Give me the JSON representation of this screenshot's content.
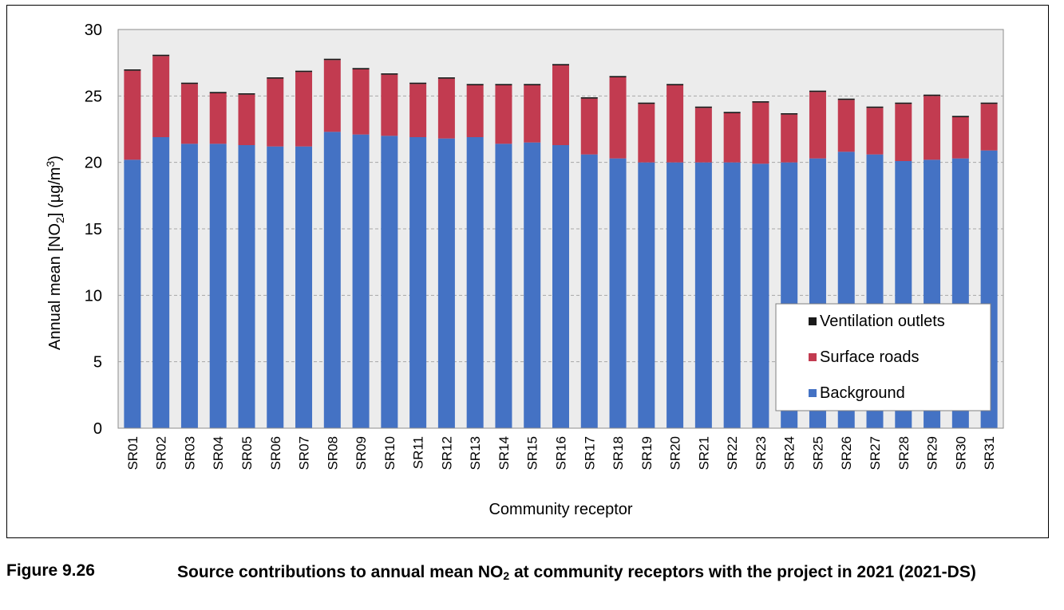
{
  "caption": {
    "label": "Figure 9.26",
    "text_before": "Source contributions to annual mean NO",
    "text_sub": "2",
    "text_after": " at community receptors with the project in 2021 (2021-DS)"
  },
  "chart_data": {
    "type": "bar",
    "stacked": true,
    "categories": [
      "SR01",
      "SR02",
      "SR03",
      "SR04",
      "SR05",
      "SR06",
      "SR07",
      "SR08",
      "SR09",
      "SR10",
      "SR11",
      "SR12",
      "SR13",
      "SR14",
      "SR15",
      "SR16",
      "SR17",
      "SR18",
      "SR19",
      "SR20",
      "SR21",
      "SR22",
      "SR23",
      "SR24",
      "SR25",
      "SR26",
      "SR27",
      "SR28",
      "SR29",
      "SR30",
      "SR31"
    ],
    "series": [
      {
        "name": "Background",
        "color": "#4472c4",
        "values": [
          20.2,
          21.9,
          21.4,
          21.4,
          21.3,
          21.2,
          21.2,
          22.3,
          22.1,
          22.0,
          21.9,
          21.8,
          21.9,
          21.4,
          21.5,
          21.3,
          20.6,
          20.3,
          20.0,
          20.0,
          20.0,
          20.0,
          19.9,
          20.0,
          20.3,
          20.8,
          20.6,
          20.1,
          20.2,
          20.3,
          20.9
        ]
      },
      {
        "name": "Surface roads",
        "color": "#c23b50",
        "values": [
          6.7,
          6.1,
          4.5,
          3.8,
          3.8,
          5.1,
          5.6,
          5.4,
          4.9,
          4.6,
          4.0,
          4.5,
          3.9,
          4.4,
          4.3,
          6.0,
          4.2,
          6.1,
          4.4,
          5.8,
          4.1,
          3.7,
          4.6,
          3.6,
          5.0,
          3.9,
          3.5,
          4.3,
          4.8,
          3.1,
          3.5
        ]
      },
      {
        "name": "Ventilation outlets",
        "color": "#1a1a1a",
        "values": [
          0.1,
          0.1,
          0.1,
          0.1,
          0.1,
          0.1,
          0.1,
          0.1,
          0.1,
          0.1,
          0.1,
          0.1,
          0.1,
          0.1,
          0.1,
          0.1,
          0.1,
          0.1,
          0.1,
          0.1,
          0.1,
          0.1,
          0.1,
          0.1,
          0.1,
          0.1,
          0.1,
          0.1,
          0.1,
          0.1,
          0.1
        ]
      }
    ],
    "legend_order": [
      "Ventilation outlets",
      "Surface roads",
      "Background"
    ],
    "legend_position": "bottom-right",
    "xlabel": "Community receptor",
    "ylabel_parts": [
      "Annual mean [NO",
      "2",
      "] (µg/m",
      "3",
      ")"
    ],
    "ylim": [
      0,
      30
    ],
    "yticks": [
      0,
      5,
      10,
      15,
      20,
      25,
      30
    ],
    "grid": "horizontal-dashed",
    "plot_background": "#ececec"
  }
}
